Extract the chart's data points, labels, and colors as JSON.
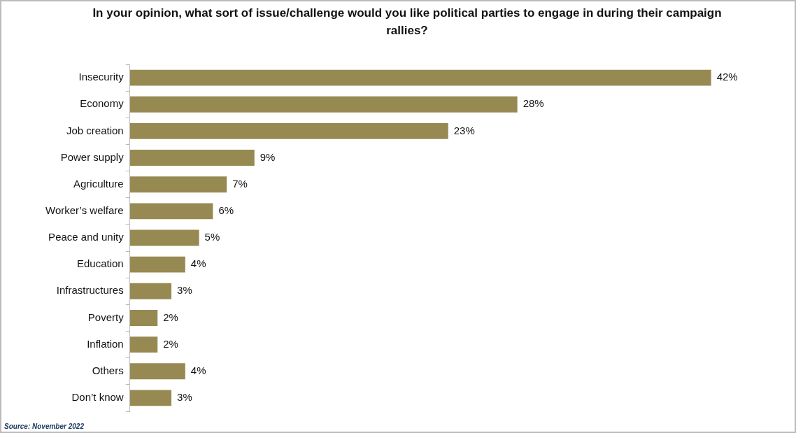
{
  "chart_data": {
    "type": "bar",
    "orientation": "horizontal",
    "title": "In your opinion, what sort of issue/challenge would you like political parties to engage in during their campaign rallies?",
    "categories": [
      "Insecurity",
      "Economy",
      "Job creation",
      "Power supply",
      "Agriculture",
      "Worker’s welfare",
      "Peace and unity",
      "Education",
      "Infrastructures",
      "Poverty",
      "Inflation",
      "Others",
      "Don’t know"
    ],
    "values": [
      42,
      28,
      23,
      9,
      7,
      6,
      5,
      4,
      3,
      2,
      2,
      4,
      3
    ],
    "value_labels": [
      "42%",
      "28%",
      "23%",
      "9%",
      "7%",
      "6%",
      "5%",
      "4%",
      "3%",
      "2%",
      "2%",
      "4%",
      "3%"
    ],
    "color": "#968a52",
    "legend": false,
    "annotations": [
      "Source: November 2022"
    ]
  }
}
